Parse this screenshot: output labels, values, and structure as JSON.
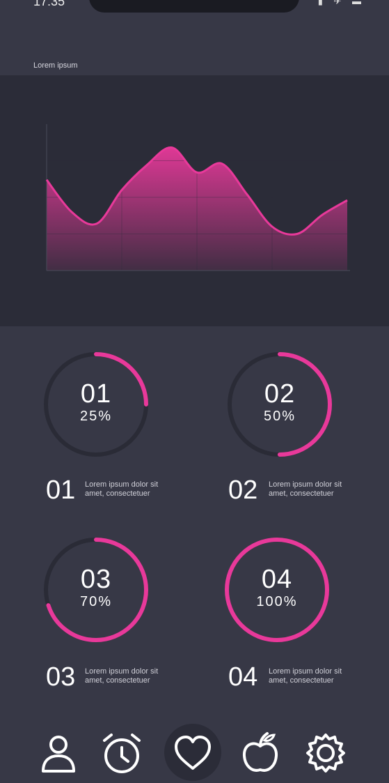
{
  "status": {
    "time": "17:35"
  },
  "header": {
    "title": "Lorem ipsum"
  },
  "chart_data": {
    "type": "area",
    "title": "",
    "x": [
      0,
      1,
      2,
      3,
      4,
      5,
      6,
      7,
      8,
      9,
      10,
      11,
      12
    ],
    "values": [
      62,
      40,
      32,
      55,
      72,
      84,
      67,
      73,
      52,
      30,
      25,
      38,
      48
    ],
    "ylim": [
      0,
      100
    ],
    "grid": true,
    "color": "#e8399a"
  },
  "rings": [
    {
      "number": "01",
      "percent_label": "25%",
      "percent": 25
    },
    {
      "number": "02",
      "percent_label": "50%",
      "percent": 50
    },
    {
      "number": "03",
      "percent_label": "70%",
      "percent": 70
    },
    {
      "number": "04",
      "percent_label": "100%",
      "percent": 100
    }
  ],
  "legend": [
    {
      "number": "01",
      "line1": "Lorem ipsum dolor sit",
      "line2": "amet, consectetuer"
    },
    {
      "number": "02",
      "line1": "Lorem ipsum dolor sit",
      "line2": "amet, consectetuer"
    },
    {
      "number": "03",
      "line1": "Lorem ipsum dolor sit",
      "line2": "amet, consectetuer"
    },
    {
      "number": "04",
      "line1": "Lorem ipsum dolor sit",
      "line2": "amet, consectetuer"
    }
  ],
  "tabbar": {
    "items": [
      {
        "icon": "user-icon"
      },
      {
        "icon": "alarm-clock-icon"
      },
      {
        "icon": "heart-icon",
        "active": true
      },
      {
        "icon": "apple-icon"
      },
      {
        "icon": "gear-icon"
      }
    ]
  },
  "colors": {
    "accent": "#e8399a",
    "track": "#2a2b36",
    "panel": "#2b2c38",
    "background": "#373846"
  }
}
